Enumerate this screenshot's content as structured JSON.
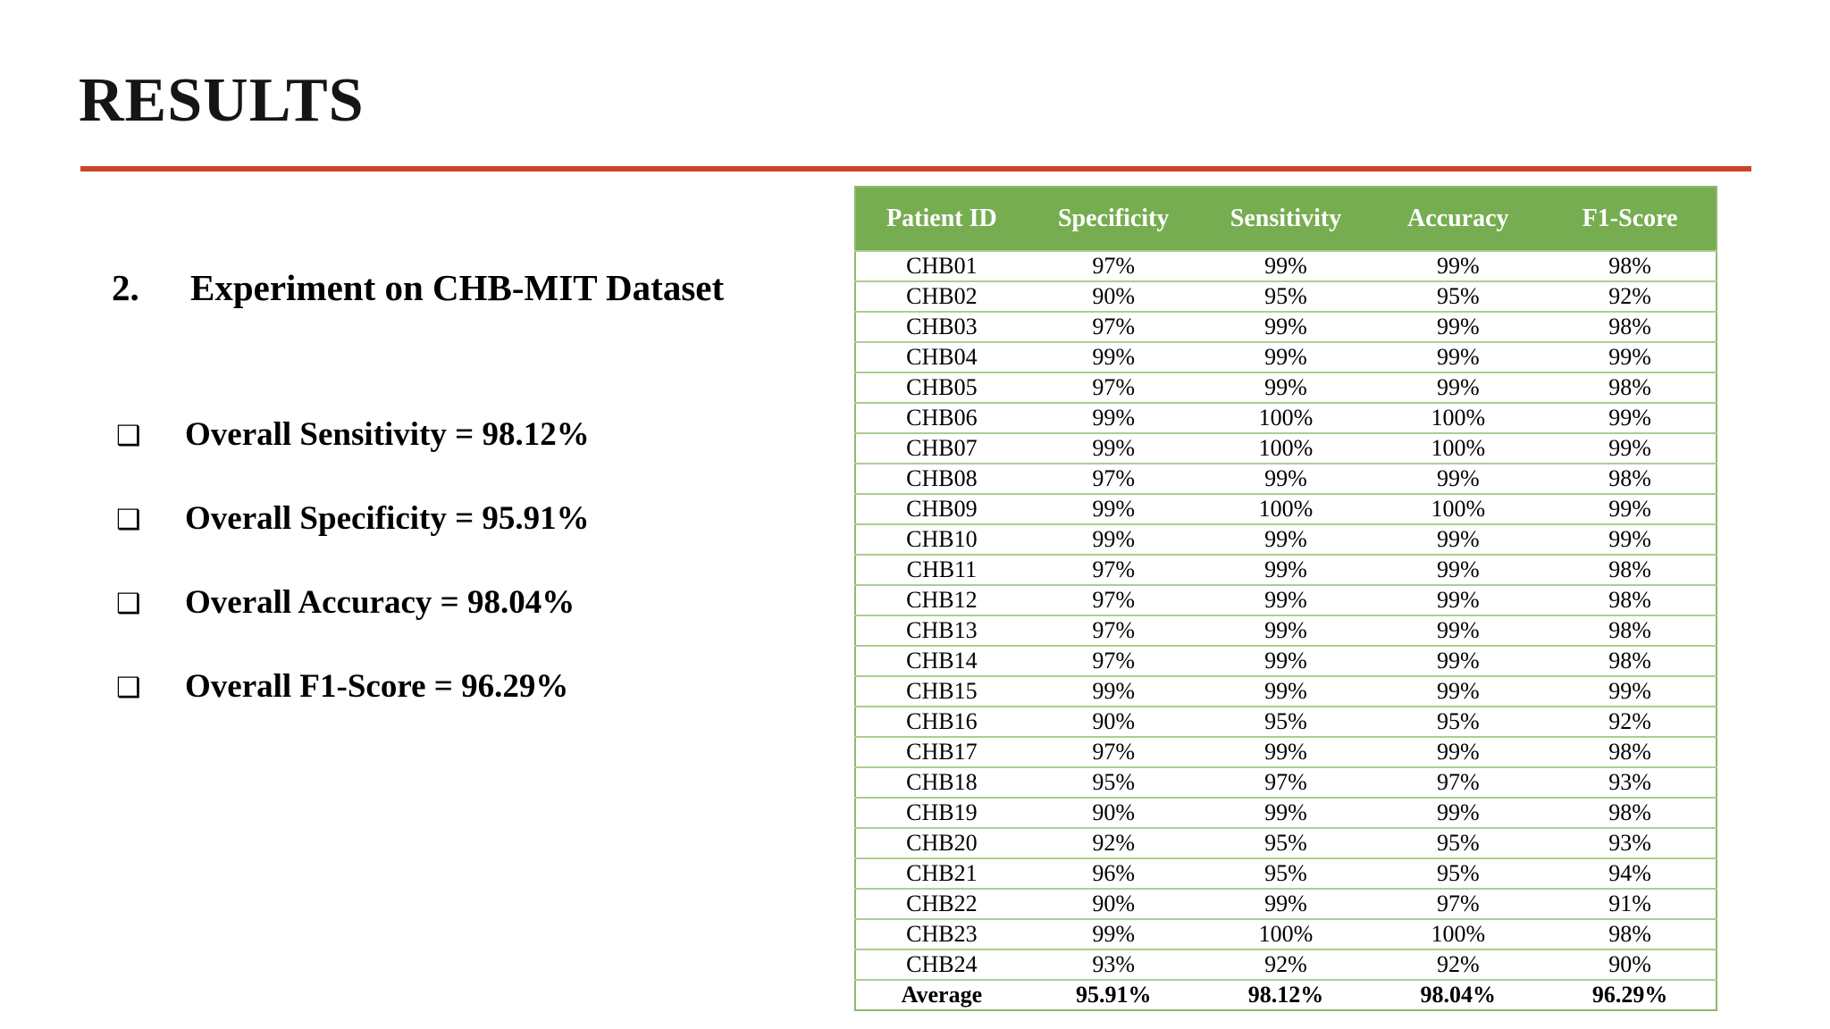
{
  "slide": {
    "title": "RESULTS",
    "accent_rule_color": "#c9452a"
  },
  "left": {
    "heading_number": "2.",
    "heading_text": "Experiment on CHB-MIT Dataset",
    "bullet_glyph": "❑",
    "bullets": [
      "Overall Sensitivity = 98.12%",
      "Overall Specificity = 95.91%",
      "Overall Accuracy = 98.04%",
      "Overall F1-Score = 96.29%"
    ]
  },
  "table": {
    "header_bg_color": "#76ad51",
    "row_border_color": "#aecd8f",
    "headers": [
      "Patient ID",
      "Specificity",
      "Sensitivity",
      "Accuracy",
      "F1-Score"
    ],
    "rows": [
      [
        "CHB01",
        "97%",
        "99%",
        "99%",
        "98%"
      ],
      [
        "CHB02",
        "90%",
        "95%",
        "95%",
        "92%"
      ],
      [
        "CHB03",
        "97%",
        "99%",
        "99%",
        "98%"
      ],
      [
        "CHB04",
        "99%",
        "99%",
        "99%",
        "99%"
      ],
      [
        "CHB05",
        "97%",
        "99%",
        "99%",
        "98%"
      ],
      [
        "CHB06",
        "99%",
        "100%",
        "100%",
        "99%"
      ],
      [
        "CHB07",
        "99%",
        "100%",
        "100%",
        "99%"
      ],
      [
        "CHB08",
        "97%",
        "99%",
        "99%",
        "98%"
      ],
      [
        "CHB09",
        "99%",
        "100%",
        "100%",
        "99%"
      ],
      [
        "CHB10",
        "99%",
        "99%",
        "99%",
        "99%"
      ],
      [
        "CHB11",
        "97%",
        "99%",
        "99%",
        "98%"
      ],
      [
        "CHB12",
        "97%",
        "99%",
        "99%",
        "98%"
      ],
      [
        "CHB13",
        "97%",
        "99%",
        "99%",
        "98%"
      ],
      [
        "CHB14",
        "97%",
        "99%",
        "99%",
        "98%"
      ],
      [
        "CHB15",
        "99%",
        "99%",
        "99%",
        "99%"
      ],
      [
        "CHB16",
        "90%",
        "95%",
        "95%",
        "92%"
      ],
      [
        "CHB17",
        "97%",
        "99%",
        "99%",
        "98%"
      ],
      [
        "CHB18",
        "95%",
        "97%",
        "97%",
        "93%"
      ],
      [
        "CHB19",
        "90%",
        "99%",
        "99%",
        "98%"
      ],
      [
        "CHB20",
        "92%",
        "95%",
        "95%",
        "93%"
      ],
      [
        "CHB21",
        "96%",
        "95%",
        "95%",
        "94%"
      ],
      [
        "CHB22",
        "90%",
        "99%",
        "97%",
        "91%"
      ],
      [
        "CHB23",
        "99%",
        "100%",
        "100%",
        "98%"
      ],
      [
        "CHB24",
        "93%",
        "92%",
        "92%",
        "90%"
      ]
    ],
    "average_row": [
      "Average",
      "95.91%",
      "98.12%",
      "98.04%",
      "96.29%"
    ]
  }
}
